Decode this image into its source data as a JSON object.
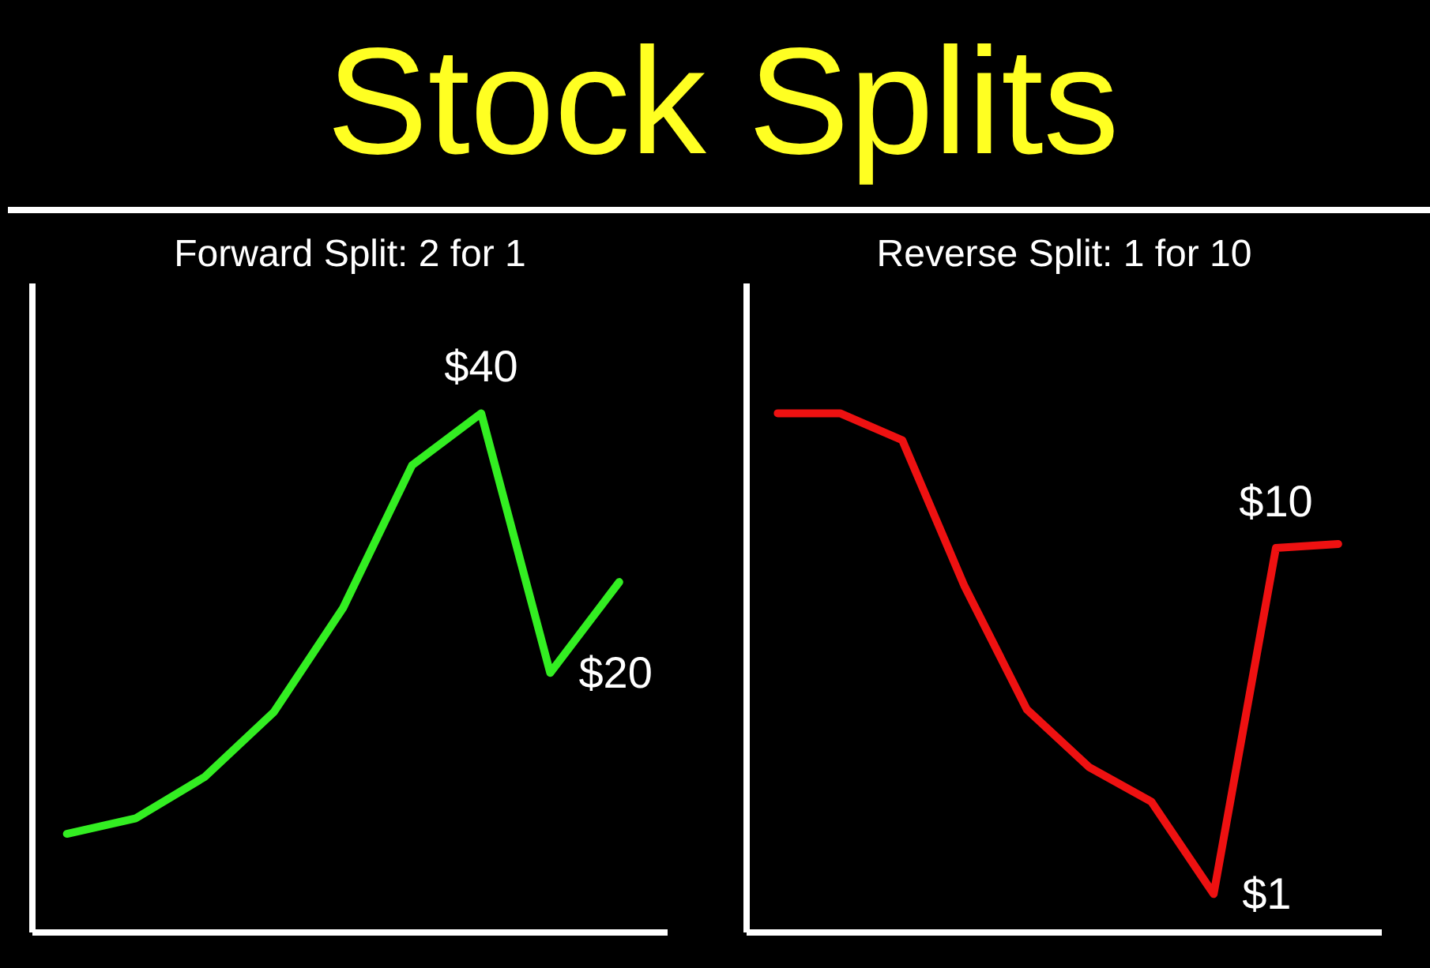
{
  "chart_data": [
    {
      "type": "line",
      "title": "Stock Splits",
      "subtitle": "Forward Split: 2 for 1",
      "tick_labels": false,
      "categories": [
        null,
        null,
        null,
        null,
        null,
        null,
        null,
        null,
        null
      ],
      "series": [
        {
          "color": "#33ee22",
          "values": [
            7.6,
            8.8,
            12,
            17,
            25,
            36,
            40,
            20,
            27
          ],
          "value_labels": [
            null,
            null,
            null,
            null,
            null,
            null,
            "$40",
            "$20",
            null
          ]
        }
      ]
    },
    {
      "type": "line",
      "subtitle": "Reverse Split: 1 for 10",
      "tick_labels": false,
      "categories": [
        null,
        null,
        null,
        null,
        null,
        null,
        null,
        null,
        null,
        null
      ],
      "series": [
        {
          "color": "#ee1111",
          "values": [
            13.5,
            13.5,
            12.8,
            9,
            5.8,
            4.3,
            3.4,
            1,
            10,
            10.1
          ],
          "value_labels": [
            null,
            null,
            null,
            null,
            null,
            null,
            null,
            "$1",
            "$10",
            null
          ]
        }
      ]
    }
  ]
}
